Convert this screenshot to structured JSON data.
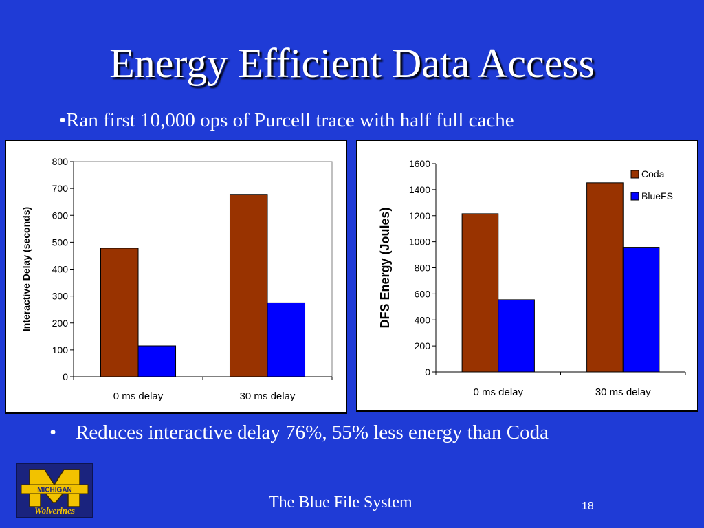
{
  "slide": {
    "title": "Energy Efficient Data Access",
    "subtitle": "•Ran first 10,000 ops of Purcell trace with half full cache",
    "bullet_marker": "•",
    "bullet": "Reduces interactive delay 76%, 55% less energy than Coda",
    "footer": "The Blue File System",
    "page_number": "18",
    "logo_text": "MICHIGAN",
    "logo_script": "Wolverines"
  },
  "colors": {
    "background": "#1f3bd6",
    "coda": "#993300",
    "bluefs": "#0000ff"
  },
  "chart_data": [
    {
      "type": "bar",
      "categories": [
        "0  ms delay",
        "30 ms delay"
      ],
      "series": [
        {
          "values": [
            478,
            678
          ]
        },
        {
          "values": [
            115,
            275
          ]
        }
      ],
      "ylabel": "Interactive Delay (seconds)",
      "xlabel": "",
      "ylim": [
        0,
        800
      ],
      "yticks": [
        0,
        100,
        200,
        300,
        400,
        500,
        600,
        700,
        800
      ],
      "grid": false,
      "legend": false
    },
    {
      "type": "bar",
      "categories": [
        "0 ms delay",
        "30 ms delay"
      ],
      "series": [
        {
          "name": "Coda",
          "values": [
            1215,
            1453
          ]
        },
        {
          "name": "BlueFS",
          "values": [
            555,
            958
          ]
        }
      ],
      "ylabel": "DFS Energy (Joules)",
      "xlabel": "",
      "ylim": [
        0,
        1600
      ],
      "yticks": [
        0,
        200,
        400,
        600,
        800,
        1000,
        1200,
        1400,
        1600
      ],
      "grid": false,
      "legend": "top-right"
    }
  ]
}
